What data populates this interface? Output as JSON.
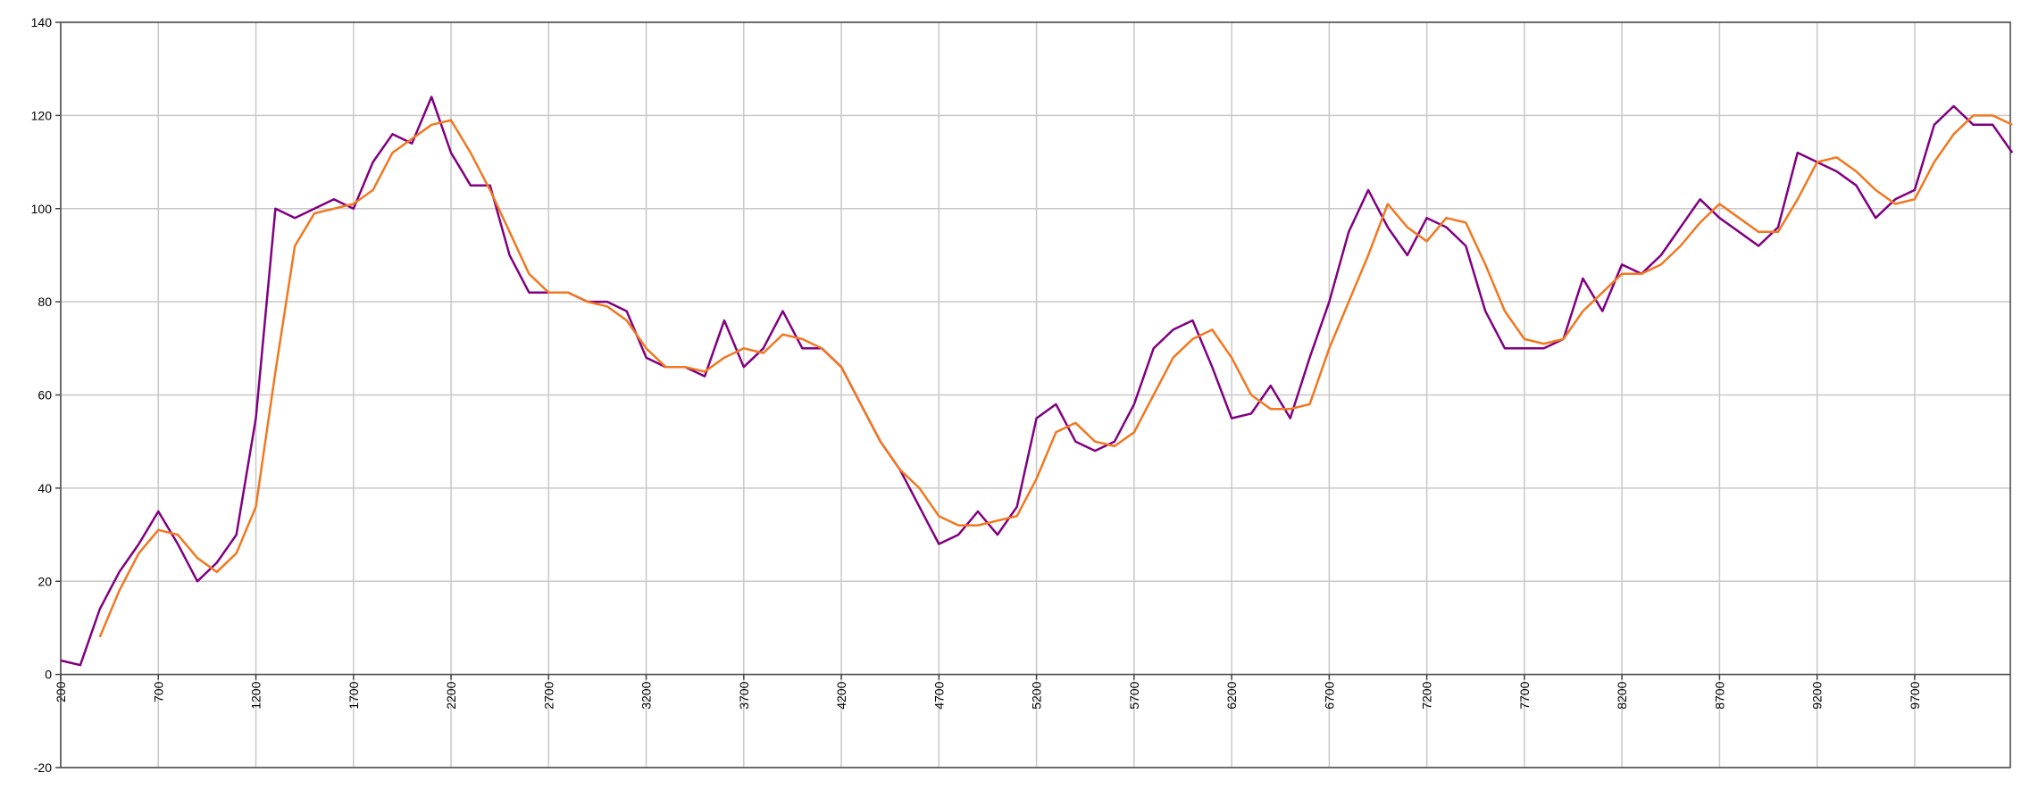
{
  "chart_data": {
    "type": "line",
    "x": [
      200,
      300,
      400,
      500,
      600,
      700,
      800,
      900,
      1000,
      1100,
      1200,
      1300,
      1400,
      1500,
      1600,
      1700,
      1800,
      1900,
      2000,
      2100,
      2200,
      2300,
      2400,
      2500,
      2600,
      2700,
      2800,
      2900,
      3000,
      3100,
      3200,
      3300,
      3400,
      3500,
      3600,
      3700,
      3800,
      3900,
      4000,
      4100,
      4200,
      4300,
      4400,
      4500,
      4600,
      4700,
      4800,
      4900,
      5000,
      5100,
      5200,
      5300,
      5400,
      5500,
      5600,
      5700,
      5800,
      5900,
      6000,
      6100,
      6200,
      6300,
      6400,
      6500,
      6600,
      6700,
      6800,
      6900,
      7000,
      7100,
      7200,
      7300,
      7400,
      7500,
      7600,
      7700,
      7800,
      7900,
      8000,
      8100,
      8200,
      8300,
      8400,
      8500,
      8600,
      8700,
      8800,
      8900,
      9000,
      9100,
      9200,
      9300,
      9400,
      9500,
      9600,
      9700,
      9800,
      9900,
      10000,
      10100,
      10200
    ],
    "series": [
      {
        "color": "#800080",
        "values": [
          3,
          2,
          14,
          22,
          28,
          35,
          28,
          20,
          24,
          30,
          55,
          100,
          98,
          100,
          102,
          100,
          110,
          116,
          114,
          124,
          112,
          105,
          105,
          90,
          82,
          82,
          82,
          80,
          80,
          78,
          68,
          66,
          66,
          64,
          76,
          66,
          70,
          78,
          70,
          70,
          66,
          58,
          50,
          44,
          36,
          28,
          30,
          35,
          30,
          36,
          55,
          58,
          50,
          48,
          50,
          58,
          70,
          74,
          76,
          66,
          55,
          56,
          62,
          55,
          68,
          80,
          95,
          104,
          96,
          90,
          98,
          96,
          92,
          78,
          70,
          70,
          70,
          72,
          85,
          78,
          88,
          86,
          90,
          96,
          102,
          98,
          95,
          92,
          96,
          112,
          110,
          108,
          105,
          98,
          102,
          104,
          118,
          122,
          118,
          118,
          112
        ]
      },
      {
        "color": "#f07820",
        "values": [
          null,
          null,
          8,
          18,
          26,
          31,
          30,
          25,
          22,
          26,
          36,
          65,
          92,
          99,
          100,
          101,
          104,
          112,
          115,
          118,
          119,
          112,
          104,
          95,
          86,
          82,
          82,
          80,
          79,
          76,
          70,
          66,
          66,
          65,
          68,
          70,
          69,
          73,
          72,
          70,
          66,
          58,
          50,
          44,
          40,
          34,
          32,
          32,
          33,
          34,
          42,
          52,
          54,
          50,
          49,
          52,
          60,
          68,
          72,
          74,
          68,
          60,
          57,
          57,
          58,
          70,
          80,
          90,
          101,
          96,
          93,
          98,
          97,
          88,
          78,
          72,
          71,
          72,
          78,
          82,
          86,
          86,
          88,
          92,
          97,
          101,
          98,
          95,
          95,
          102,
          110,
          111,
          108,
          104,
          101,
          102,
          110,
          116,
          120,
          120,
          118
        ]
      }
    ],
    "xlim": [
      200,
      10190
    ],
    "xticks": [
      200,
      700,
      1200,
      1700,
      2200,
      2700,
      3200,
      3700,
      4200,
      4700,
      5200,
      5700,
      6200,
      6700,
      7200,
      7700,
      8200,
      8700,
      9200,
      9700
    ],
    "ylim": [
      -20,
      140
    ],
    "yticks": [
      -20,
      0,
      20,
      40,
      60,
      80,
      100,
      120,
      140
    ],
    "grid": true
  }
}
